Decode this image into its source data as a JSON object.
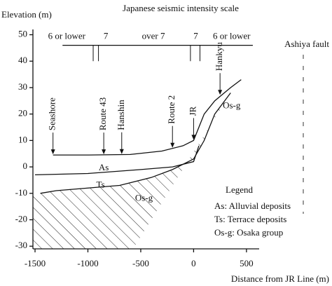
{
  "chart_data": {
    "type": "cross-section",
    "title": "Japanese seismic intensity scale",
    "y_label": "Elevation (m)",
    "x_label": "Distance from JR Line (m)",
    "xlim": [
      -1520,
      620
    ],
    "ylim": [
      -31,
      52
    ],
    "xticks": [
      -1500,
      -1000,
      -500,
      0,
      500
    ],
    "yticks": [
      50,
      40,
      30,
      20,
      10,
      0,
      -10,
      -20,
      -30
    ],
    "layers": [
      {
        "x": [
          -1330,
          -1000,
          -600,
          -300,
          -100,
          0,
          50,
          100,
          200,
          350,
          450
        ],
        "values": [
          4.5,
          4.5,
          4.7,
          6,
          8,
          10,
          15,
          20,
          25,
          30,
          33
        ]
      },
      {
        "x": [
          -1500,
          -1000,
          -500,
          -200,
          0,
          50
        ],
        "values": [
          -3,
          -2.5,
          -1,
          0,
          2,
          8
        ]
      },
      {
        "x": [
          -1450,
          -1300,
          -1000,
          -700,
          -400,
          -200,
          0,
          100,
          200,
          350
        ],
        "values": [
          -10,
          -9,
          -8,
          -7,
          -4,
          -1,
          3,
          10,
          20,
          28
        ]
      }
    ],
    "layer_labels": [
      {
        "label": "As",
        "x": -850,
        "y": -0.5
      },
      {
        "label": "Ts",
        "x": -880,
        "y": -7
      },
      {
        "label": "Os-g",
        "x": -470,
        "y": -12
      },
      {
        "label": "Os-g",
        "x": 360,
        "y": 23
      }
    ],
    "locations": [
      {
        "label": "Seashore",
        "x": -1330,
        "y": 4.5
      },
      {
        "label": "Route 43",
        "x": -850,
        "y": 4.5
      },
      {
        "label": "Hanshin",
        "x": -680,
        "y": 4.6
      },
      {
        "label": "Route 2",
        "x": -200,
        "y": 7
      },
      {
        "label": "JR",
        "x": 0,
        "y": 10
      },
      {
        "label": "Hankyu",
        "x": 250,
        "y": 27
      }
    ],
    "intensity_scale": {
      "elevation": 46,
      "extent": [
        -1240,
        560
      ],
      "drop": 40,
      "dividers": [
        -950,
        -900,
        -30,
        60
      ],
      "zones": [
        {
          "label": "6 or lower",
          "x": -1200
        },
        {
          "label": "7",
          "x": -830
        },
        {
          "label": "over 7",
          "x": -380
        },
        {
          "label": "7",
          "x": 20
        },
        {
          "label": "6 or lower",
          "x": 360
        }
      ]
    },
    "fault": {
      "label": "Ashiya fault"
    },
    "legend": {
      "title": "Legend",
      "items": [
        "As: Alluvial deposits",
        "Ts: Terrace deposits",
        "Os-g: Osaka group"
      ]
    }
  }
}
